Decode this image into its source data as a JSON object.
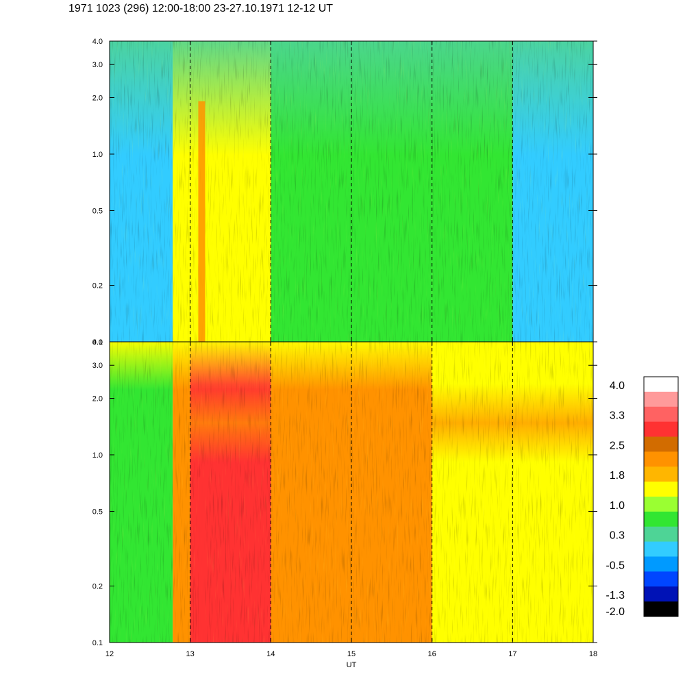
{
  "title": "1971 1023 (296) 12:00-18:00 23-27.10.1971  12-12 UT",
  "chart_data": [
    {
      "type": "heatmap",
      "panel": "upper",
      "x_ticks": [
        "12",
        "13",
        "14",
        "15",
        "16",
        "17",
        "18"
      ],
      "xlim": [
        12,
        18
      ],
      "y_scale": "log",
      "ylim": [
        0.1,
        4.0
      ],
      "y_ticks": [
        {
          "value": 0.1,
          "label": "0.1"
        },
        {
          "value": 0.2,
          "label": "0.2"
        },
        {
          "value": 0.5,
          "label": "0.5"
        },
        {
          "value": 1.0,
          "label": "1.0"
        },
        {
          "value": 2.0,
          "label": "2.0"
        },
        {
          "value": 3.0,
          "label": "3.0"
        },
        {
          "value": 4.0,
          "label": "4.0"
        }
      ],
      "hour_markers": [
        13,
        14,
        15,
        16,
        17
      ],
      "dominant_level_by_hour": [
        {
          "x": "12:00-12:47",
          "value": -0.5
        },
        {
          "x": "12:47-13:00",
          "value": 1.0
        },
        {
          "x": "13:00-14:00",
          "value": 1.0
        },
        {
          "x": "14:00-15:00",
          "value": 0.3
        },
        {
          "x": "15:00-16:00",
          "value": 0.3
        },
        {
          "x": "16:00-17:00",
          "value": 0.3
        },
        {
          "x": "17:00-18:00",
          "value": -0.5
        }
      ]
    },
    {
      "type": "heatmap",
      "panel": "lower",
      "x_ticks": [
        "12",
        "13",
        "14",
        "15",
        "16",
        "17",
        "18"
      ],
      "xlim": [
        12,
        18
      ],
      "xlabel": "UT",
      "y_scale": "log",
      "ylim": [
        0.1,
        4.0
      ],
      "y_ticks": [
        {
          "value": 0.1,
          "label": "0.1"
        },
        {
          "value": 0.2,
          "label": "0.2"
        },
        {
          "value": 0.5,
          "label": "0.5"
        },
        {
          "value": 1.0,
          "label": "1.0"
        },
        {
          "value": 2.0,
          "label": "2.0"
        },
        {
          "value": 3.0,
          "label": "3.0"
        },
        {
          "value": 4.0,
          "label": "4.0"
        }
      ],
      "hour_markers": [
        13,
        14,
        15,
        16,
        17
      ],
      "dominant_level_by_hour": [
        {
          "x": "12:00-12:47",
          "value": 0.3
        },
        {
          "x": "12:47-13:00",
          "value": 1.8
        },
        {
          "x": "13:00-14:00",
          "value": 2.5
        },
        {
          "x": "14:00-15:00",
          "value": 1.8
        },
        {
          "x": "15:00-16:00",
          "value": 1.8
        },
        {
          "x": "16:00-17:00",
          "value": 1.0
        },
        {
          "x": "17:00-18:00",
          "value": 1.0
        }
      ]
    }
  ],
  "colorbar": {
    "labels": [
      "4.0",
      "3.3",
      "2.5",
      "1.8",
      "1.0",
      "0.3",
      "-0.5",
      "-1.3",
      "-2.0"
    ],
    "colors": [
      "#ffffff",
      "#ff9a9a",
      "#ff6262",
      "#ff3232",
      "#d26c00",
      "#ff9200",
      "#ffb600",
      "#ffff00",
      "#9aff32",
      "#32e632",
      "#4ed496",
      "#32ccff",
      "#009aff",
      "#0046ff",
      "#0012b6",
      "#000000"
    ]
  }
}
